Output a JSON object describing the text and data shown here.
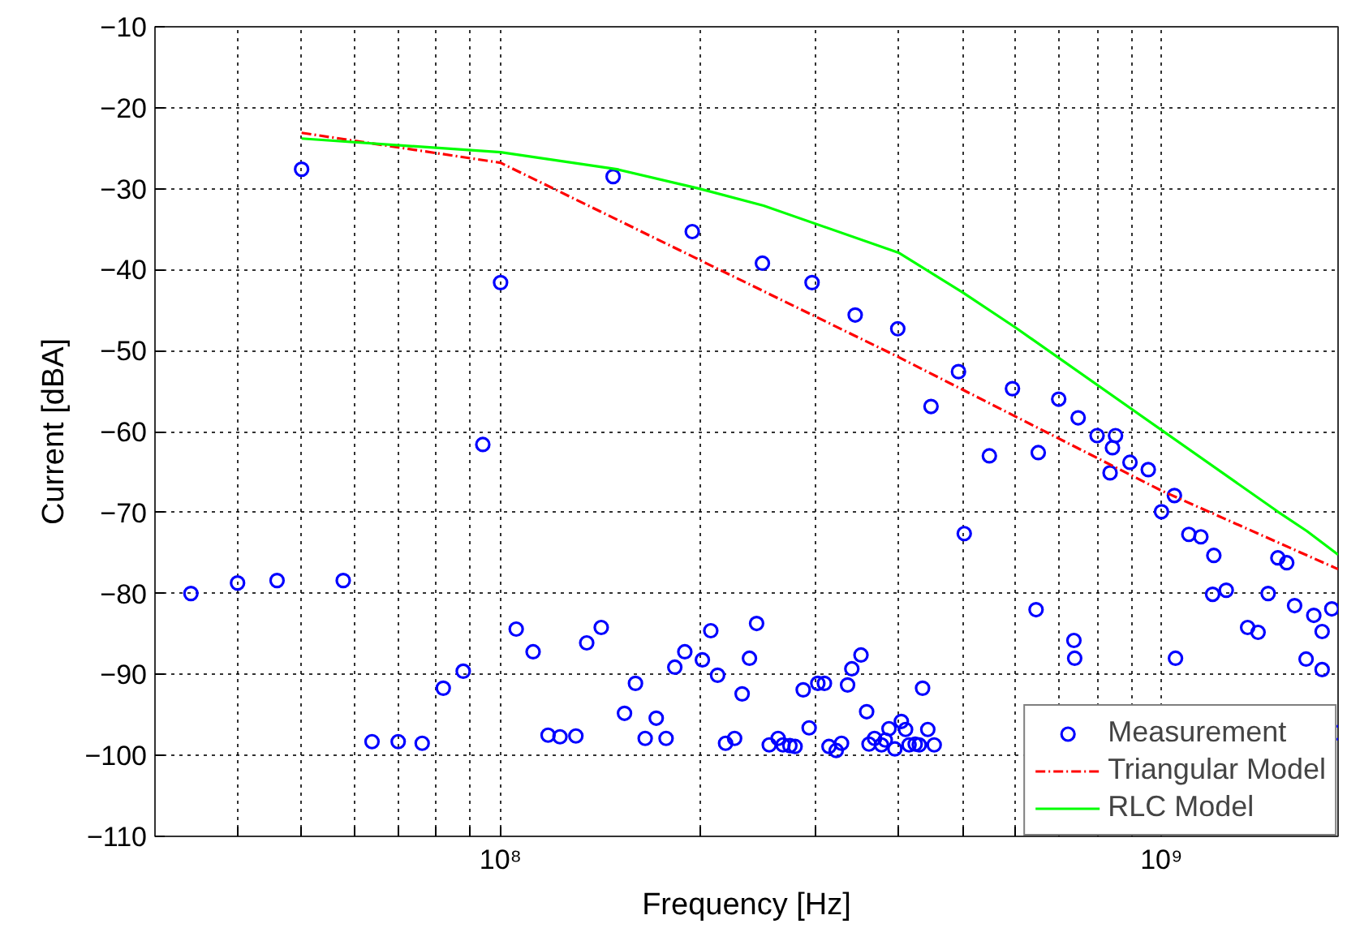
{
  "chart_data": {
    "type": "scatter",
    "xlabel": "Frequency [Hz]",
    "ylabel": "Current [dBA]",
    "log": "x",
    "grid": true,
    "legend": "bottom right",
    "xlim": [
      30000000.0,
      1850000000.0
    ],
    "ylim": [
      -110,
      -10
    ],
    "xticks": [
      {
        "value": 40000000.0,
        "label": null
      },
      {
        "value": 50000000.0,
        "label": null
      },
      {
        "value": 60000000.0,
        "label": null
      },
      {
        "value": 70000000.0,
        "label": null
      },
      {
        "value": 80000000.0,
        "label": null
      },
      {
        "value": 90000000.0,
        "label": null
      },
      {
        "value": 100000000.0,
        "label": "10⁸"
      },
      {
        "value": 200000000.0,
        "label": null
      },
      {
        "value": 300000000.0,
        "label": null
      },
      {
        "value": 400000000.0,
        "label": null
      },
      {
        "value": 500000000.0,
        "label": null
      },
      {
        "value": 600000000.0,
        "label": null
      },
      {
        "value": 700000000.0,
        "label": null
      },
      {
        "value": 800000000.0,
        "label": null
      },
      {
        "value": 900000000.0,
        "label": null
      },
      {
        "value": 1000000000.0,
        "label": "10⁹"
      }
    ],
    "yticks": [
      -110,
      -100,
      -90,
      -80,
      -70,
      -60,
      -50,
      -40,
      -30,
      -20,
      -10
    ],
    "series": [
      {
        "name": "Measurement",
        "marker": "circle",
        "color": "#0000ff",
        "x": [
          34000000.0,
          40000000.0,
          45900000.0,
          50000000.0,
          57800000.0,
          63900000.0,
          70000000.0,
          76100000.0,
          81900000.0,
          87800000.0,
          94000000.0,
          100000000.0,
          105600000.0,
          112000000.0,
          118000000.0,
          123000000.0,
          130000000.0,
          135000000.0,
          142000000.0,
          148000000.0,
          154000000.0,
          160000000.0,
          165500000.0,
          172000000.0,
          178000000.0,
          183500000.0,
          190000000.0,
          195000000.0,
          202000000.0,
          208000000.0,
          213000000.0,
          219000000.0,
          226000000.0,
          232000000.0,
          238000000.0,
          244000000.0,
          249000000.0,
          255000000.0,
          263000000.0,
          267500000.0,
          274000000.0,
          279000000.0,
          287000000.0,
          293000000.0,
          296000000.0,
          302000000.0,
          309000000.0,
          314000000.0,
          322000000.0,
          328000000.0,
          335000000.0,
          340000000.0,
          344000000.0,
          351000000.0,
          358000000.0,
          361000000.0,
          368000000.0,
          377000000.0,
          382000000.0,
          387000000.0,
          395000000.0,
          399000000.0,
          404000000.0,
          410000000.0,
          415000000.0,
          424000000.0,
          430000000.0,
          435000000.0,
          443000000.0,
          448000000.0,
          453000000.0,
          493000000.0,
          503000000.0,
          549000000.0,
          595000000.0,
          646000000.0,
          651000000.0,
          699000000.0,
          737000000.0,
          739000000.0,
          748000000.0,
          799000000.0,
          836000000.0,
          843000000.0,
          852000000.0,
          896000000.0,
          955000000.0,
          1000000000.0,
          1046000000.0,
          1050000000.0,
          1100000000.0,
          1147000000.0,
          1195000000.0,
          1200000000.0,
          1253000000.0,
          1350000000.0,
          1400000000.0,
          1450000000.0,
          1500000000.0,
          1547000000.0,
          1590000000.0,
          1655000000.0,
          1700000000.0,
          1750000000.0,
          1750000000.0,
          1810000000.0,
          1840000000.0
        ],
        "values": [
          -80.0,
          -78.7,
          -78.4,
          -27.6,
          -78.4,
          -98.3,
          -98.3,
          -98.5,
          -91.7,
          -89.6,
          -61.6,
          -41.6,
          -84.4,
          -87.2,
          -97.5,
          -97.7,
          -97.6,
          -86.1,
          -84.2,
          -28.5,
          -94.8,
          -91.1,
          -97.9,
          -95.4,
          -97.9,
          -89.1,
          -87.2,
          -35.3,
          -88.2,
          -84.6,
          -90.1,
          -98.5,
          -97.9,
          -92.4,
          -88.0,
          -83.7,
          -39.2,
          -98.7,
          -97.9,
          -98.7,
          -98.8,
          -98.9,
          -91.9,
          -96.6,
          -41.6,
          -91.1,
          -91.1,
          -98.9,
          -99.4,
          -98.5,
          -91.3,
          -89.3,
          -45.6,
          -87.6,
          -94.6,
          -98.6,
          -97.9,
          -98.7,
          -98.1,
          -96.7,
          -99.2,
          -47.3,
          -95.8,
          -96.8,
          -98.7,
          -98.6,
          -98.7,
          -91.7,
          -96.8,
          -56.9,
          -98.7,
          -52.6,
          -72.6,
          -63.0,
          -54.7,
          -82.0,
          -62.6,
          -56.0,
          -85.8,
          -88.0,
          -58.3,
          -60.5,
          -65.1,
          -62.0,
          -60.5,
          -63.8,
          -64.7,
          -69.9,
          -67.9,
          -88.0,
          -72.7,
          -73.0,
          -80.1,
          -75.3,
          -79.6,
          -84.2,
          -84.8,
          -80.0,
          -75.6,
          -76.2,
          -81.5,
          -88.1,
          -82.7,
          -84.7,
          -89.4,
          -81.9,
          -97.2
        ]
      },
      {
        "name": "Triangular Model",
        "type": "line",
        "line_style": "dashdot",
        "color": "#ff0000",
        "x": [
          50000000.0,
          100000000.0,
          400000000.0,
          1000000000.0,
          1850000000.0
        ],
        "values": [
          -23.1,
          -26.8,
          -50.8,
          -67.3,
          -77.0
        ]
      },
      {
        "name": "RLC Model",
        "type": "line",
        "line_style": "solid",
        "color": "#00ff00",
        "x": [
          50000000.0,
          100000000.0,
          150000000.0,
          200000000.0,
          250000000.0,
          400000000.0,
          500000000.0,
          600000000.0,
          1500000000.0,
          1660000000.0,
          1850000000.0
        ],
        "values": [
          -23.8,
          -25.5,
          -27.6,
          -30.0,
          -32.1,
          -37.9,
          -42.8,
          -47.1,
          -69.9,
          -72.3,
          -75.2
        ]
      }
    ]
  }
}
